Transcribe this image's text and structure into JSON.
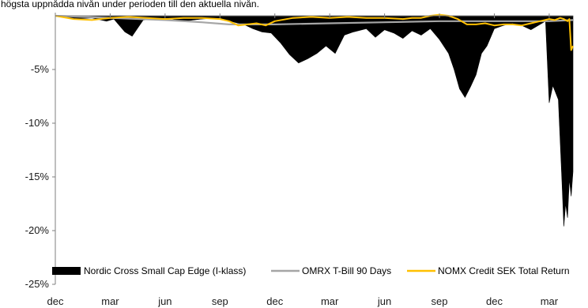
{
  "subtitle": "högsta uppnådda nivån under perioden till den aktuella nivån.",
  "chart_data": {
    "type": "area",
    "title": "",
    "xlabel": "",
    "ylabel": "",
    "ylim": [
      -25,
      0
    ],
    "yticks": [
      "-5%",
      "-10%",
      "-15%",
      "-20%",
      "-25%"
    ],
    "ytick_values": [
      -5,
      -10,
      -15,
      -20,
      -25
    ],
    "xticks": [
      "dec",
      "mar",
      "jun",
      "sep",
      "dec",
      "mar",
      "jun",
      "sep",
      "dec",
      "mar"
    ],
    "xtick_positions": [
      0,
      3,
      6,
      9,
      12,
      15,
      18,
      21,
      24,
      27
    ],
    "xlim": [
      0,
      28.3
    ],
    "grid": false,
    "legend_position": "bottom",
    "colors": {
      "nordic_cross": "#000000",
      "omrx": "#a6a6a6",
      "nomx": "#ffc000",
      "axis": "#7f7f7f"
    },
    "series": [
      {
        "name": "Nordic Cross Small Cap Edge (I-klass)",
        "kind": "area",
        "color": "#000000",
        "x": [
          0,
          1,
          2,
          2.8,
          3.2,
          3.8,
          4.2,
          4.8,
          5.5,
          6,
          7,
          8,
          9,
          9.8,
          10.3,
          10.8,
          11.3,
          11.8,
          12.3,
          12.8,
          13.3,
          13.8,
          14.3,
          14.8,
          15.3,
          15.8,
          16.3,
          17,
          17.5,
          18,
          18.5,
          19,
          19.5,
          20,
          20.5,
          21,
          21.5,
          21.8,
          22.1,
          22.4,
          22.7,
          23,
          23.3,
          23.6,
          24,
          24.5,
          25,
          25.5,
          26,
          26.5,
          26.8,
          27.0,
          27.2,
          27.5,
          27.7,
          27.8,
          27.9,
          28.0,
          28.1,
          28.2,
          28.3
        ],
        "values": [
          0,
          -0.3,
          -0.2,
          -0.5,
          -0.3,
          -1.5,
          -1.9,
          -0.4,
          -0.3,
          -0.2,
          -0.5,
          -0.3,
          -0.2,
          -0.6,
          -0.8,
          -1.2,
          -1.5,
          -1.6,
          -2.5,
          -3.6,
          -4.4,
          -4.0,
          -3.5,
          -2.8,
          -3.5,
          -1.8,
          -1.5,
          -1.2,
          -2.0,
          -1.3,
          -1.6,
          -2.1,
          -1.4,
          -1.8,
          -1.2,
          -2.2,
          -3.5,
          -5.0,
          -6.8,
          -7.6,
          -6.6,
          -5.5,
          -3.5,
          -2.8,
          -1.2,
          -0.9,
          -0.7,
          -0.9,
          -1.3,
          -0.8,
          -0.5,
          -8.1,
          -6.5,
          -7.8,
          -15.5,
          -19.6,
          -17.5,
          -18.8,
          -15.2,
          -16.8,
          -14.5
        ]
      },
      {
        "name": "OMRX T-Bill 90 Days",
        "kind": "line",
        "color": "#a6a6a6",
        "x": [
          0,
          3,
          6,
          8,
          9.5,
          12,
          15,
          18,
          21,
          24,
          27,
          28.3
        ],
        "values": [
          0,
          -0.2,
          -0.4,
          -0.6,
          -0.8,
          -0.8,
          -0.7,
          -0.6,
          -0.5,
          -0.5,
          -0.5,
          -0.4
        ]
      },
      {
        "name": "NOMX Credit SEK Total Return",
        "kind": "line",
        "color": "#ffc000",
        "x": [
          0,
          1,
          2,
          3,
          4,
          5,
          6,
          7,
          8,
          9,
          9.5,
          10,
          10.5,
          11,
          11.5,
          12,
          13,
          14,
          15,
          16,
          17,
          18,
          19,
          19.5,
          20,
          20.5,
          21,
          21.5,
          22,
          22.5,
          23,
          23.5,
          24,
          24.5,
          25,
          25.5,
          26,
          26.5,
          27.0,
          27.3,
          27.6,
          27.8,
          28.0,
          28.1,
          28.2,
          28.3
        ],
        "values": [
          0,
          -0.3,
          -0.4,
          -0.2,
          -0.1,
          -0.2,
          -0.3,
          -0.2,
          -0.2,
          -0.3,
          -0.5,
          -0.9,
          -0.8,
          -0.7,
          -0.9,
          -0.5,
          -0.2,
          -0.1,
          -0.2,
          -0.1,
          -0.2,
          -0.2,
          -0.3,
          -0.2,
          -0.2,
          0,
          0.1,
          0,
          -0.3,
          -0.8,
          -0.8,
          -0.7,
          -0.9,
          -0.8,
          -0.8,
          -0.9,
          -0.7,
          -0.5,
          -0.3,
          -0.4,
          -0.2,
          -0.3,
          -0.5,
          -0.3,
          -3.2,
          -2.8
        ]
      }
    ]
  }
}
